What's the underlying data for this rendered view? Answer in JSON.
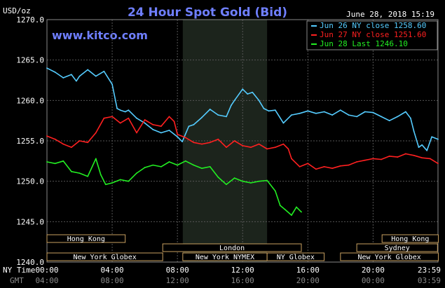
{
  "header": {
    "ylabel": "USD/oz",
    "title": "24 Hour Spot Gold (Bid)",
    "timestamp": "June 28, 2018 15:19",
    "site": "www.kitco.com"
  },
  "colors": {
    "background": "#000000",
    "grid": "#555555",
    "site": "#6f7fff"
  },
  "axis_row_labels": {
    "ny": "NY Time",
    "gmt": "GMT"
  },
  "markets": [
    {
      "name": "Hong Kong",
      "row": 0,
      "start": 0.0,
      "end": 4.8
    },
    {
      "name": "London",
      "row": 1,
      "start": 7.1,
      "end": 15.6
    },
    {
      "name": "New York Globex",
      "row": 2,
      "start": 0.0,
      "end": 7.1
    },
    {
      "name": "New York NYMEX",
      "row": 2,
      "start": 8.33,
      "end": 13.5
    },
    {
      "name": "NY Globex",
      "row": 2,
      "start": 13.5,
      "end": 17.0
    },
    {
      "name": "Hong Kong",
      "row": 0,
      "start": 20.55,
      "end": 24.0
    },
    {
      "name": "Sydney",
      "row": 1,
      "start": 19.0,
      "end": 23.95
    },
    {
      "name": "New York Globex",
      "row": 2,
      "start": 18.0,
      "end": 24.0
    }
  ],
  "chart_data": {
    "type": "line",
    "title": "24 Hour Spot Gold (Bid)",
    "xlabel": "",
    "ylabel": "USD/oz",
    "ylim": [
      1240,
      1270
    ],
    "xlim": [
      0,
      23.98
    ],
    "yticks": [
      "1240.0",
      "1245.0",
      "1250.0",
      "1255.0",
      "1260.0",
      "1265.0",
      "1270.0"
    ],
    "xticks_ny": [
      "00:00",
      "04:00",
      "08:00",
      "12:00",
      "16:00",
      "20:00",
      "23:59"
    ],
    "xticks_gmt": [
      "04:00",
      "08:00",
      "12:00",
      "16:00",
      "20:00",
      "00:00",
      "03:59"
    ],
    "xtick_positions": [
      0,
      4,
      8,
      12,
      16,
      20,
      23.98
    ],
    "grid": true,
    "legend_position": "top-right",
    "shaded_region": [
      8.33,
      13.5
    ],
    "series": [
      {
        "name": "Jun 26 NY close 1258.60",
        "color": "#55ccff",
        "x": [
          0,
          0.5,
          1,
          1.5,
          1.8,
          2,
          2.5,
          3,
          3.5,
          4,
          4.3,
          4.5,
          4.8,
          5,
          5.5,
          6,
          6.5,
          7,
          7.5,
          8,
          8.3,
          8.7,
          9,
          9.5,
          10,
          10.5,
          11,
          11.3,
          11.5,
          12,
          12.3,
          12.6,
          13,
          13.3,
          13.6,
          14,
          14.5,
          15,
          15.5,
          16,
          16.5,
          17,
          17.5,
          18,
          18.5,
          19,
          19.5,
          20,
          20.5,
          21,
          21.5,
          22,
          22.3,
          22.5,
          22.8,
          23,
          23.3,
          23.6,
          23.98
        ],
        "values": [
          1264.0,
          1263.5,
          1262.8,
          1263.2,
          1262.4,
          1263.0,
          1263.8,
          1263.0,
          1263.6,
          1262.0,
          1259.0,
          1258.8,
          1258.6,
          1258.8,
          1257.8,
          1257.2,
          1256.4,
          1256.0,
          1256.3,
          1255.5,
          1254.9,
          1256.8,
          1257.0,
          1257.9,
          1258.9,
          1258.2,
          1258.0,
          1259.4,
          1260.0,
          1261.4,
          1260.8,
          1261.0,
          1260.0,
          1259.0,
          1258.7,
          1258.8,
          1257.2,
          1258.2,
          1258.4,
          1258.7,
          1258.4,
          1258.6,
          1258.2,
          1258.8,
          1258.2,
          1258.0,
          1258.6,
          1258.5,
          1258.0,
          1257.5,
          1258.0,
          1258.6,
          1257.8,
          1256.2,
          1254.2,
          1254.5,
          1253.8,
          1255.5,
          1255.2
        ]
      },
      {
        "name": "Jun 27 NY close 1251.60",
        "color": "#ff2020",
        "x": [
          0,
          0.5,
          1,
          1.5,
          2,
          2.5,
          3,
          3.5,
          4,
          4.5,
          5,
          5.5,
          6,
          6.5,
          7,
          7.5,
          7.8,
          8,
          8.5,
          9,
          9.5,
          10,
          10.5,
          11,
          11.5,
          12,
          12.5,
          13,
          13.5,
          14,
          14.5,
          14.8,
          15,
          15.5,
          16,
          16.5,
          17,
          17.5,
          18,
          18.5,
          19,
          19.5,
          20,
          20.5,
          21,
          21.5,
          22,
          22.5,
          23,
          23.5,
          23.98
        ],
        "values": [
          1255.6,
          1255.2,
          1254.6,
          1254.2,
          1255.0,
          1254.8,
          1256.0,
          1257.8,
          1258.0,
          1257.2,
          1257.8,
          1256.0,
          1257.6,
          1257.0,
          1256.8,
          1258.0,
          1257.4,
          1255.8,
          1255.4,
          1254.8,
          1254.6,
          1254.8,
          1255.2,
          1254.2,
          1255.0,
          1254.4,
          1254.2,
          1254.6,
          1254.0,
          1254.2,
          1254.6,
          1254.0,
          1252.8,
          1251.8,
          1252.2,
          1251.5,
          1251.8,
          1251.6,
          1251.9,
          1252.0,
          1252.4,
          1252.6,
          1252.8,
          1252.7,
          1253.1,
          1253.0,
          1253.4,
          1253.2,
          1252.9,
          1252.8,
          1252.2
        ]
      },
      {
        "name": "Jun 28 Last 1246.10",
        "color": "#22ee22",
        "x": [
          0,
          0.5,
          1,
          1.5,
          2,
          2.5,
          3,
          3.3,
          3.6,
          4,
          4.5,
          5,
          5.5,
          6,
          6.5,
          7,
          7.5,
          8,
          8.5,
          9,
          9.5,
          10,
          10.5,
          11,
          11.5,
          12,
          12.5,
          13,
          13.5,
          14,
          14.3,
          14.6,
          15,
          15.3,
          15.6
        ],
        "values": [
          1252.4,
          1252.2,
          1252.5,
          1251.2,
          1251.0,
          1250.6,
          1252.8,
          1250.8,
          1249.6,
          1249.8,
          1250.2,
          1250.0,
          1251.0,
          1251.7,
          1252.0,
          1251.8,
          1252.4,
          1252.0,
          1252.5,
          1252.0,
          1251.6,
          1251.8,
          1250.5,
          1249.6,
          1250.4,
          1250.0,
          1249.8,
          1250.0,
          1250.1,
          1248.8,
          1247.0,
          1246.5,
          1245.8,
          1246.8,
          1246.2
        ]
      }
    ]
  }
}
